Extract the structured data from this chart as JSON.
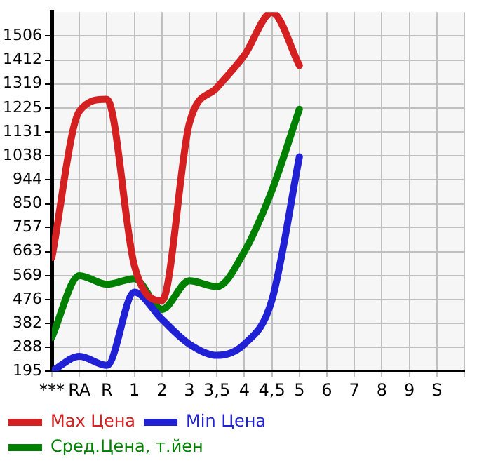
{
  "chart_data": {
    "type": "line",
    "categories": [
      "***",
      "RA",
      "R",
      "1",
      "2",
      "3",
      "3,5",
      "4",
      "4,5",
      "5",
      "6",
      "7",
      "8",
      "9",
      "S"
    ],
    "series": [
      {
        "name": "Max Цена",
        "color": "#d42020",
        "values": [
          640,
          1212,
          1259,
          608,
          471,
          1165,
          1304,
          1431,
          1598,
          1391,
          null,
          null,
          null,
          null,
          null
        ]
      },
      {
        "name": "Min Цена",
        "color": "#2020d4",
        "values": [
          195,
          253,
          218,
          504,
          398,
          301,
          257,
          301,
          473,
          1034,
          null,
          null,
          null,
          null,
          null
        ]
      },
      {
        "name": "Сред.Цена, т.йен",
        "color": "#008000",
        "values": [
          328,
          569,
          535,
          557,
          437,
          549,
          526,
          663,
          902,
          1220,
          null,
          null,
          null,
          null,
          null
        ]
      }
    ],
    "ylim": [
      195,
      1600
    ],
    "yticks": [
      195,
      288,
      382,
      476,
      569,
      663,
      757,
      850,
      944,
      1038,
      1131,
      1225,
      1319,
      1412,
      1506
    ],
    "grid": true,
    "legend": "bottom",
    "marker": "none",
    "line_style": "solid"
  }
}
